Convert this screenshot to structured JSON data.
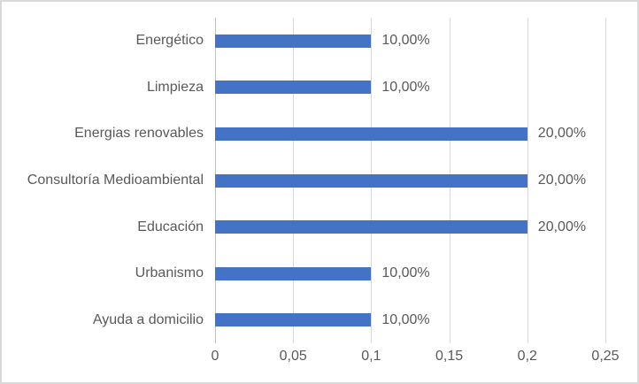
{
  "chart_data": {
    "type": "bar",
    "orientation": "horizontal",
    "title": "",
    "xlabel": "",
    "ylabel": "",
    "categories": [
      "Energético",
      "Limpieza",
      "Energias renovables",
      "Consultoría Medioambiental",
      "Educación",
      "Urbanismo",
      "Ayuda a domicilio"
    ],
    "values": [
      0.1,
      0.1,
      0.2,
      0.2,
      0.2,
      0.1,
      0.1
    ],
    "value_labels": [
      "10,00%",
      "10,00%",
      "20,00%",
      "20,00%",
      "20,00%",
      "10,00%",
      "10,00%"
    ],
    "x_tick_labels": [
      "0",
      "0,05",
      "0,1",
      "0,15",
      "0,2",
      "0,25"
    ],
    "x_tick_values": [
      0,
      0.05,
      0.1,
      0.15,
      0.2,
      0.25
    ],
    "xlim": [
      0,
      0.25
    ],
    "grid": true,
    "legend": false,
    "colors": {
      "bar": "#4472c4",
      "gridline": "#d9d9d9",
      "axis_line": "#bfbfbf",
      "text": "#595959",
      "frame_border": "#d9d9d9",
      "background": "#ffffff"
    }
  }
}
